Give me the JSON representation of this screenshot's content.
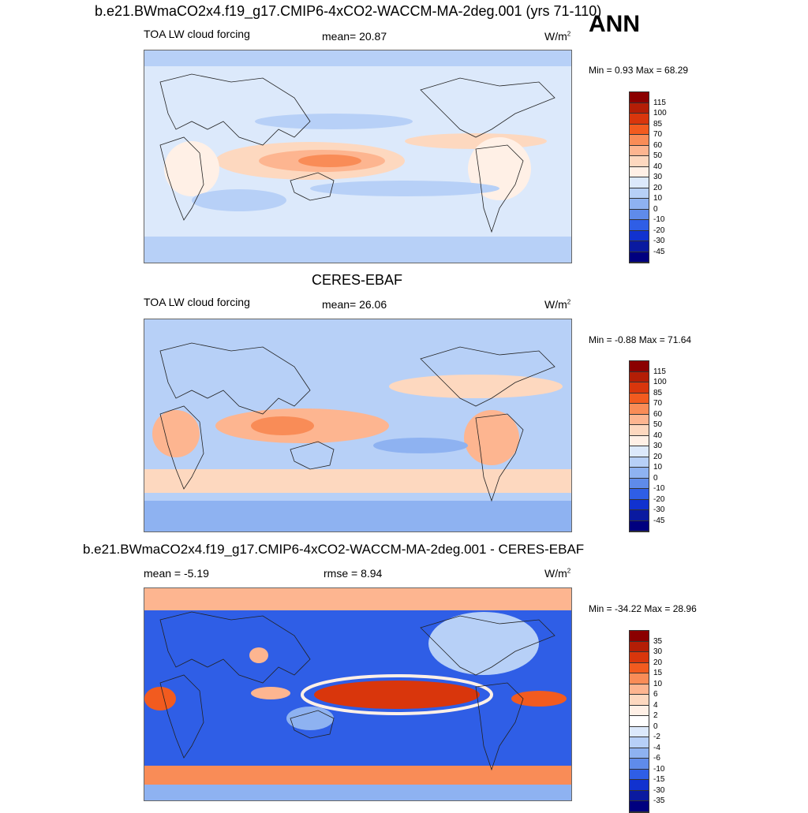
{
  "header": {
    "title": "b.e21.BWmaCO2x4.f19_g17.CMIP6-4xCO2-WACCM-MA-2deg.001 (yrs 71-110)",
    "season": "ANN"
  },
  "chart_data": [
    {
      "type": "heatmap",
      "title": "b.e21.BWmaCO2x4.f19_g17.CMIP6-4xCO2-WACCM-MA-2deg.001 (yrs 71-110)",
      "left_label": "TOA LW cloud forcing",
      "stat_label": "mean=  20.87",
      "units": "W/m",
      "units_sup": "2",
      "minmax": "Min =   0.93 Max =  68.29",
      "levels": [
        "115",
        "100",
        "85",
        "70",
        "60",
        "50",
        "40",
        "30",
        "20",
        "10",
        "0",
        "-10",
        "-20",
        "-30",
        "-45"
      ],
      "colors": [
        "#8b0000",
        "#b41e06",
        "#d9360c",
        "#f25b1f",
        "#f98c57",
        "#fdb590",
        "#fdd8bf",
        "#fff0e6",
        "#dce9fb",
        "#b7d0f7",
        "#8eb2f1",
        "#5f8bea",
        "#2f5ee6",
        "#1132cf",
        "#0a1aa0",
        "#00007f"
      ]
    },
    {
      "type": "heatmap",
      "title": "CERES-EBAF",
      "left_label": "TOA LW cloud forcing",
      "stat_label": "mean=  26.06",
      "units": "W/m",
      "units_sup": "2",
      "minmax": "Min =  -0.88 Max =  71.64",
      "levels": [
        "115",
        "100",
        "85",
        "70",
        "60",
        "50",
        "40",
        "30",
        "20",
        "10",
        "0",
        "-10",
        "-20",
        "-30",
        "-45"
      ],
      "colors": [
        "#8b0000",
        "#b41e06",
        "#d9360c",
        "#f25b1f",
        "#f98c57",
        "#fdb590",
        "#fdd8bf",
        "#fff0e6",
        "#dce9fb",
        "#b7d0f7",
        "#8eb2f1",
        "#5f8bea",
        "#2f5ee6",
        "#1132cf",
        "#0a1aa0",
        "#00007f"
      ]
    },
    {
      "type": "heatmap",
      "title": "b.e21.BWmaCO2x4.f19_g17.CMIP6-4xCO2-WACCM-MA-2deg.001 - CERES-EBAF",
      "left_label": "mean =  -5.19",
      "stat_label": "rmse =   8.94",
      "units": "W/m",
      "units_sup": "2",
      "minmax": "Min = -34.22 Max =  28.96",
      "levels": [
        "35",
        "30",
        "20",
        "15",
        "10",
        "6",
        "4",
        "2",
        "0",
        "-2",
        "-4",
        "-6",
        "-10",
        "-15",
        "-30",
        "-35"
      ],
      "colors": [
        "#8b0000",
        "#b41e06",
        "#d9360c",
        "#f25b1f",
        "#f98c57",
        "#fdb590",
        "#fdd8bf",
        "#fff0e6",
        "#ffffff",
        "#dce9fb",
        "#b7d0f7",
        "#8eb2f1",
        "#5f8bea",
        "#2f5ee6",
        "#1132cf",
        "#0a1aa0",
        "#00007f"
      ]
    }
  ]
}
